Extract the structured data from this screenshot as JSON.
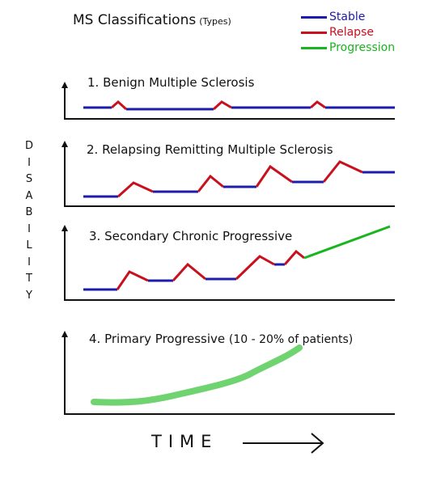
{
  "title": "MS Classifications",
  "title_suffix": "(Types)",
  "legend": [
    {
      "label": "Stable",
      "color": "#1c1cad"
    },
    {
      "label": "Relapse",
      "color": "#c8101e"
    },
    {
      "label": "Progression",
      "color": "#19b51d"
    }
  ],
  "y_axis_label": "DISABILITY",
  "x_axis_label": "TIME",
  "panels": [
    {
      "label": "1. Benign Multiple Sclerosis"
    },
    {
      "label": "2. Relapsing Remitting Multiple Sclerosis"
    },
    {
      "label": "3. Secondary Chronic Progressive"
    },
    {
      "label": "4. Primary Progressive",
      "note": "(10 - 20% of patients)"
    }
  ],
  "colors": {
    "stable": "#1c1cad",
    "relapse": "#c8101e",
    "progression": "#19b51d",
    "primary_progression": "#6fd36f",
    "axis": "#111111"
  }
}
